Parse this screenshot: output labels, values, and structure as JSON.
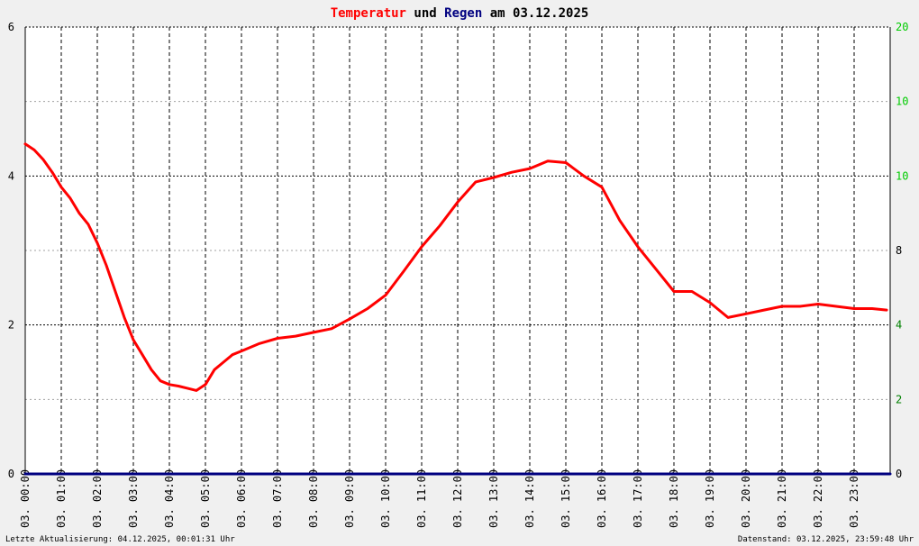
{
  "title": {
    "part1": "Temperatur",
    "part2": " und ",
    "part3": "Regen",
    "part4": " am 03.12.2025"
  },
  "colors": {
    "temperature": "#ff0000",
    "rain": "#000080",
    "left_axis": "#000000",
    "right_axis_lower": "#008000",
    "right_axis_upper": "#00cc00",
    "grid": "#000000"
  },
  "footer": {
    "left": "Letzte Aktualisierung: 04.12.2025, 00:01:31 Uhr",
    "right": "Datenstand: 03.12.2025, 23:59:48 Uhr"
  },
  "chart_data": {
    "type": "line",
    "x_unit": "hours",
    "xlim": [
      0,
      24
    ],
    "ylim_left": [
      0,
      6
    ],
    "ylim_right": [
      0,
      20
    ],
    "left_ticks": [
      "0",
      "2",
      "4",
      "6"
    ],
    "right_ticks": [
      "0",
      "2",
      "4",
      "8",
      "10",
      "10",
      "20"
    ],
    "x_ticks": [
      "03. 00:00",
      "03. 01:00",
      "03. 02:00",
      "03. 03:00",
      "03. 04:00",
      "03. 05:00",
      "03. 06:00",
      "03. 07:00",
      "03. 08:00",
      "03. 09:00",
      "03. 10:00",
      "03. 11:00",
      "03. 12:00",
      "03. 13:00",
      "03. 14:00",
      "03. 15:00",
      "03. 16:00",
      "03. 17:00",
      "03. 18:00",
      "03. 19:00",
      "03. 20:00",
      "03. 21:00",
      "03. 22:00",
      "03. 23:00"
    ],
    "grid": true,
    "series": [
      {
        "key": "temperature",
        "axis": "left",
        "x": [
          0,
          0.25,
          0.5,
          0.75,
          1,
          1.25,
          1.5,
          1.75,
          2,
          2.25,
          2.5,
          2.75,
          3,
          3.25,
          3.5,
          3.75,
          4,
          4.25,
          4.5,
          4.75,
          5,
          5.25,
          5.5,
          5.75,
          6,
          6.5,
          7,
          7.5,
          8,
          8.5,
          9,
          9.5,
          10,
          10.5,
          11,
          11.5,
          12,
          12.5,
          13,
          13.5,
          14,
          14.5,
          15,
          15.5,
          16,
          16.5,
          17,
          17.5,
          18,
          18.5,
          19,
          19.5,
          20,
          20.5,
          21,
          21.5,
          22,
          22.5,
          23,
          23.5,
          23.9
        ],
        "y": [
          4.43,
          4.35,
          4.22,
          4.05,
          3.85,
          3.7,
          3.5,
          3.35,
          3.1,
          2.8,
          2.45,
          2.1,
          1.8,
          1.6,
          1.4,
          1.25,
          1.2,
          1.18,
          1.15,
          1.12,
          1.2,
          1.4,
          1.5,
          1.6,
          1.65,
          1.75,
          1.82,
          1.85,
          1.9,
          1.95,
          2.08,
          2.22,
          2.4,
          2.72,
          3.05,
          3.33,
          3.65,
          3.92,
          3.98,
          4.05,
          4.1,
          4.2,
          4.18,
          4.0,
          3.85,
          3.4,
          3.05,
          2.75,
          2.45,
          2.45,
          2.3,
          2.1,
          2.15,
          2.2,
          2.25,
          2.25,
          2.28,
          2.25,
          2.22,
          2.22,
          2.2
        ]
      },
      {
        "key": "rain",
        "axis": "right",
        "x": [
          0,
          24
        ],
        "y": [
          0,
          0
        ]
      }
    ]
  }
}
